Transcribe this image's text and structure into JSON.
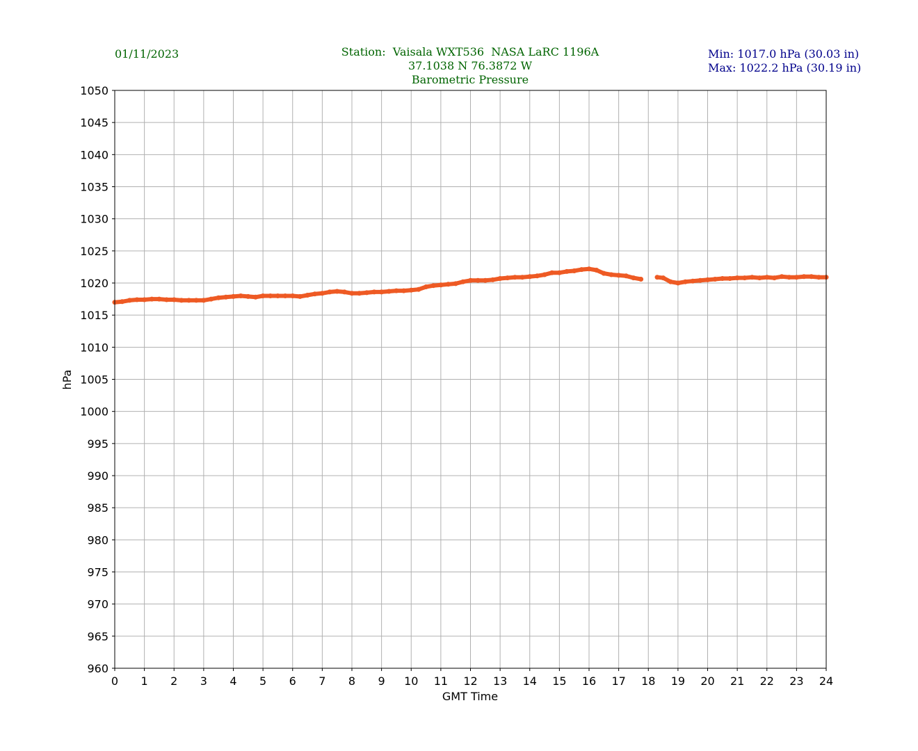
{
  "header": {
    "date": "01/11/2023",
    "station_line1": "Station:  Vaisala WXT536  NASA LaRC 1196A",
    "station_line2": "37.1038 N 76.3872 W",
    "station_line3": "Barometric Pressure",
    "min_text": "Min: 1017.0 hPa (30.03 in)",
    "max_text": "Max: 1022.2 hPa (30.19 in)"
  },
  "chart_data": {
    "type": "line",
    "title": "Barometric Pressure",
    "xlabel": "GMT Time",
    "ylabel": "hPa",
    "xlim": [
      0,
      24
    ],
    "ylim": [
      960,
      1050
    ],
    "xticks": [
      "0",
      "1",
      "2",
      "3",
      "4",
      "5",
      "6",
      "7",
      "8",
      "9",
      "10",
      "11",
      "12",
      "13",
      "14",
      "15",
      "16",
      "17",
      "18",
      "19",
      "20",
      "21",
      "22",
      "23",
      "24"
    ],
    "yticks": [
      "960",
      "965",
      "970",
      "975",
      "980",
      "985",
      "990",
      "995",
      "1000",
      "1005",
      "1010",
      "1015",
      "1020",
      "1025",
      "1030",
      "1035",
      "1040",
      "1045",
      "1050"
    ],
    "grid": true,
    "line_color": "#ee5a24",
    "series": [
      {
        "segments": [
          [
            [
              0,
              1017.0
            ],
            [
              0.25,
              1017.1
            ],
            [
              0.5,
              1017.3
            ],
            [
              0.75,
              1017.4
            ],
            [
              1,
              1017.4
            ],
            [
              1.25,
              1017.5
            ],
            [
              1.5,
              1017.5
            ],
            [
              1.75,
              1017.4
            ],
            [
              2,
              1017.4
            ],
            [
              2.25,
              1017.3
            ],
            [
              2.5,
              1017.3
            ],
            [
              2.75,
              1017.3
            ],
            [
              3,
              1017.3
            ],
            [
              3.25,
              1017.5
            ],
            [
              3.5,
              1017.7
            ],
            [
              3.75,
              1017.8
            ],
            [
              4,
              1017.9
            ],
            [
              4.25,
              1018.0
            ],
            [
              4.5,
              1017.9
            ],
            [
              4.75,
              1017.8
            ],
            [
              5,
              1018.0
            ],
            [
              5.25,
              1018.0
            ],
            [
              5.5,
              1018.0
            ],
            [
              5.75,
              1018.0
            ],
            [
              6,
              1018.0
            ],
            [
              6.25,
              1017.9
            ],
            [
              6.5,
              1018.1
            ],
            [
              6.75,
              1018.3
            ],
            [
              7,
              1018.4
            ],
            [
              7.25,
              1018.6
            ],
            [
              7.5,
              1018.7
            ],
            [
              7.75,
              1018.6
            ],
            [
              8,
              1018.4
            ],
            [
              8.25,
              1018.4
            ],
            [
              8.5,
              1018.5
            ],
            [
              8.75,
              1018.6
            ],
            [
              9,
              1018.6
            ],
            [
              9.25,
              1018.7
            ],
            [
              9.5,
              1018.8
            ],
            [
              9.75,
              1018.8
            ],
            [
              10,
              1018.9
            ],
            [
              10.25,
              1019.0
            ],
            [
              10.5,
              1019.4
            ],
            [
              10.75,
              1019.6
            ],
            [
              11,
              1019.7
            ],
            [
              11.25,
              1019.8
            ],
            [
              11.5,
              1019.9
            ],
            [
              11.75,
              1020.2
            ],
            [
              12,
              1020.4
            ],
            [
              12.25,
              1020.4
            ],
            [
              12.5,
              1020.4
            ],
            [
              12.75,
              1020.5
            ],
            [
              13,
              1020.7
            ],
            [
              13.25,
              1020.8
            ],
            [
              13.5,
              1020.9
            ],
            [
              13.75,
              1020.9
            ],
            [
              14,
              1021.0
            ],
            [
              14.25,
              1021.1
            ],
            [
              14.5,
              1021.3
            ],
            [
              14.75,
              1021.6
            ],
            [
              15,
              1021.6
            ],
            [
              15.25,
              1021.8
            ],
            [
              15.5,
              1021.9
            ],
            [
              15.75,
              1022.1
            ],
            [
              16,
              1022.2
            ],
            [
              16.25,
              1022.0
            ],
            [
              16.5,
              1021.5
            ],
            [
              16.75,
              1021.3
            ],
            [
              17,
              1021.2
            ],
            [
              17.25,
              1021.1
            ],
            [
              17.5,
              1020.8
            ],
            [
              17.75,
              1020.6
            ]
          ],
          [
            [
              18.3,
              1020.9
            ],
            [
              18.5,
              1020.8
            ],
            [
              18.75,
              1020.2
            ],
            [
              19,
              1020.0
            ],
            [
              19.25,
              1020.2
            ],
            [
              19.5,
              1020.3
            ],
            [
              19.75,
              1020.4
            ],
            [
              20,
              1020.5
            ],
            [
              20.25,
              1020.6
            ],
            [
              20.5,
              1020.7
            ],
            [
              20.75,
              1020.7
            ],
            [
              21,
              1020.8
            ],
            [
              21.25,
              1020.8
            ],
            [
              21.5,
              1020.9
            ],
            [
              21.75,
              1020.8
            ],
            [
              22,
              1020.9
            ],
            [
              22.25,
              1020.8
            ],
            [
              22.5,
              1021.0
            ],
            [
              22.75,
              1020.9
            ],
            [
              23,
              1020.9
            ],
            [
              23.25,
              1021.0
            ],
            [
              23.5,
              1021.0
            ],
            [
              23.75,
              1020.9
            ],
            [
              24,
              1020.9
            ]
          ]
        ]
      }
    ]
  }
}
